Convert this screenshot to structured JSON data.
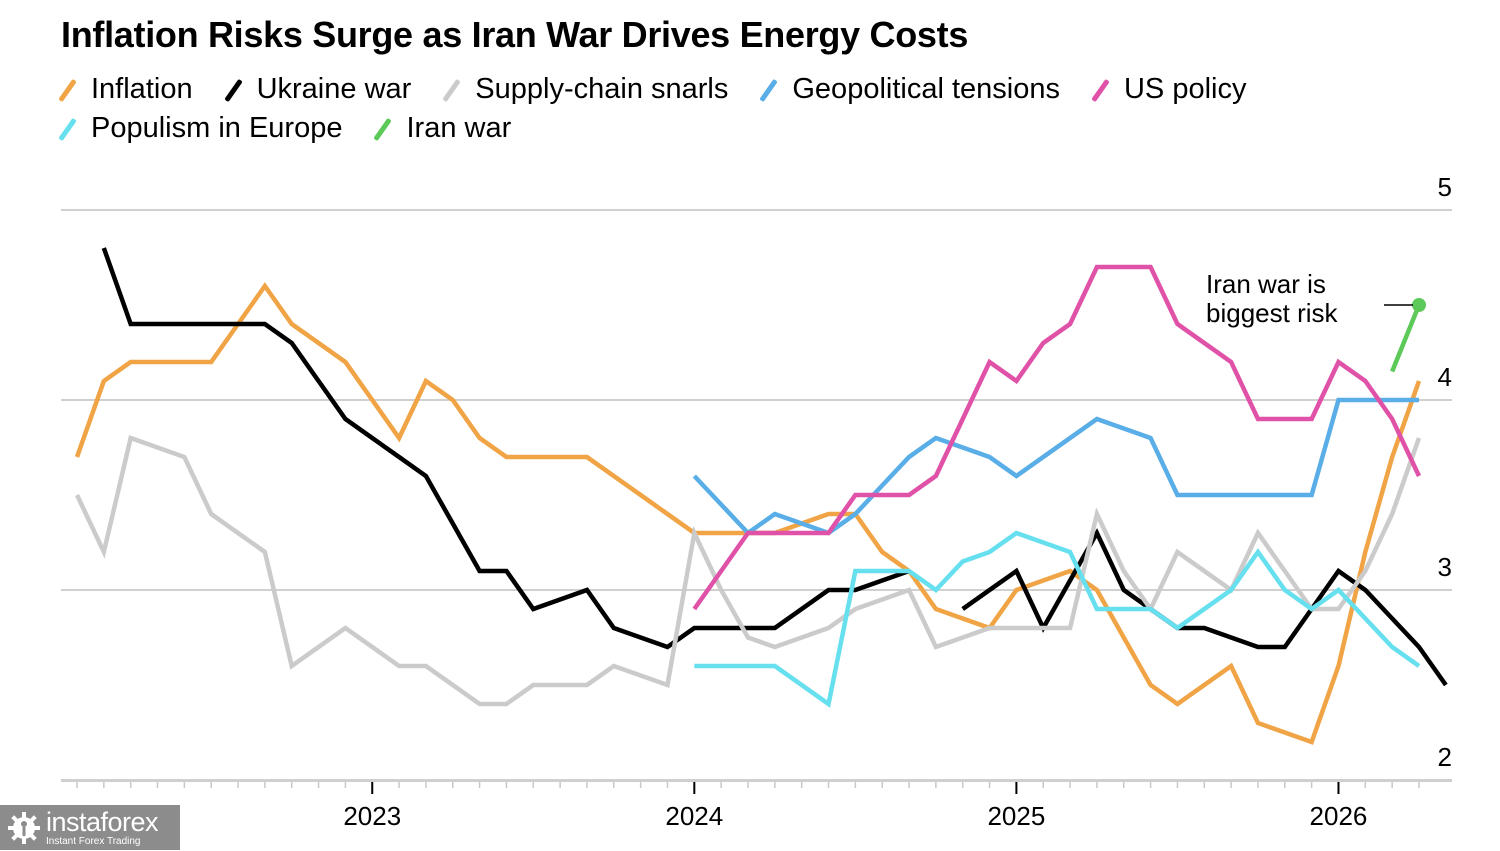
{
  "chart_data": {
    "type": "line",
    "title": "Inflation Risks Surge as Iran War Drives Energy Costs",
    "xlabel": "",
    "ylabel": "",
    "x_start": "2022-02",
    "x_end": "2026-04",
    "x_frequency": "monthly",
    "x_tick_labels": [
      {
        "label": "2023",
        "month_index": 11
      },
      {
        "label": "2024",
        "month_index": 23
      },
      {
        "label": "2025",
        "month_index": 35
      },
      {
        "label": "2026",
        "month_index": 47
      }
    ],
    "ylim": [
      1.85,
      5.15
    ],
    "y_ticks": [
      2,
      3,
      4,
      5
    ],
    "y_axis_side": "right",
    "grid": true,
    "legend_position": "top",
    "series": [
      {
        "name": "Inflation",
        "color": "#f0a445",
        "start_index": 0,
        "values": [
          3.7,
          4.1,
          4.2,
          4.2,
          4.2,
          4.2,
          4.4,
          4.6,
          4.4,
          4.3,
          4.2,
          4.0,
          3.8,
          4.1,
          4.0,
          3.8,
          3.7,
          3.7,
          3.7,
          3.7,
          3.6,
          3.5,
          3.4,
          3.3,
          3.3,
          3.3,
          3.3,
          3.35,
          3.4,
          3.4,
          3.2,
          3.1,
          2.9,
          2.85,
          2.8,
          3.0,
          3.05,
          3.1,
          3.0,
          2.75,
          2.5,
          2.4,
          2.5,
          2.6,
          2.3,
          2.25,
          2.2,
          2.6,
          3.2,
          3.7,
          4.1
        ]
      },
      {
        "name": "Ukraine war",
        "color": "#000000",
        "start_index": 1,
        "values": [
          4.8,
          4.4,
          4.4,
          4.4,
          4.4,
          4.4,
          4.4,
          4.3,
          4.1,
          3.9,
          3.8,
          3.7,
          3.6,
          3.35,
          3.1,
          3.1,
          2.9,
          2.95,
          3.0,
          2.8,
          2.75,
          2.7,
          2.8,
          2.8,
          2.8,
          2.8,
          2.9,
          3.0,
          3.0,
          3.05,
          3.1,
          null,
          2.9,
          3.0,
          3.1,
          2.8,
          3.05,
          3.3,
          3.0,
          2.9,
          2.8,
          2.8,
          2.75,
          2.7,
          2.7,
          2.9,
          3.1,
          3.0,
          2.85,
          2.7,
          2.5
        ]
      },
      {
        "name": "Supply-chain snarls",
        "color": "#cbcbcb",
        "start_index": 0,
        "values": [
          3.5,
          3.2,
          3.8,
          3.75,
          3.7,
          3.4,
          3.3,
          3.2,
          2.6,
          2.7,
          2.8,
          2.7,
          2.6,
          2.6,
          2.5,
          2.4,
          2.4,
          2.5,
          2.5,
          2.5,
          2.6,
          2.55,
          2.5,
          3.3,
          3.0,
          2.75,
          2.7,
          2.75,
          2.8,
          2.9,
          2.95,
          3.0,
          2.7,
          2.75,
          2.8,
          2.8,
          2.8,
          2.8,
          3.4,
          3.1,
          2.9,
          3.2,
          3.1,
          3.0,
          3.3,
          3.1,
          2.9,
          2.9,
          3.1,
          3.4,
          3.8
        ]
      },
      {
        "name": "Geopolitical tensions",
        "color": "#5aaee8",
        "start_index": 23,
        "values": [
          3.6,
          3.45,
          3.3,
          3.4,
          3.35,
          3.3,
          3.4,
          3.55,
          3.7,
          3.8,
          3.75,
          3.7,
          3.6,
          3.7,
          3.8,
          3.9,
          3.85,
          3.8,
          3.5,
          3.5,
          3.5,
          3.5,
          3.5,
          3.5,
          4.0,
          4.0,
          4.0,
          4.0
        ]
      },
      {
        "name": "US policy",
        "color": "#e052a8",
        "start_index": 23,
        "values": [
          2.9,
          3.1,
          3.3,
          3.3,
          3.3,
          3.3,
          3.5,
          3.5,
          3.5,
          3.6,
          3.9,
          4.2,
          4.1,
          4.3,
          4.4,
          4.7,
          4.7,
          4.7,
          4.4,
          4.3,
          4.2,
          3.9,
          3.9,
          3.9,
          4.2,
          4.1,
          3.9,
          3.6
        ]
      },
      {
        "name": "Populism in Europe",
        "color": "#66dfee",
        "start_index": 23,
        "values": [
          2.6,
          2.6,
          2.6,
          2.6,
          2.5,
          2.4,
          3.1,
          3.1,
          3.1,
          3.0,
          3.15,
          3.2,
          3.3,
          3.25,
          3.2,
          2.9,
          2.9,
          2.9,
          2.8,
          2.9,
          3.0,
          3.2,
          3.0,
          2.9,
          3.0,
          2.85,
          2.7,
          2.6
        ]
      },
      {
        "name": "Iran war",
        "color": "#5cc958",
        "start_index": 49,
        "values": [
          4.15,
          4.5
        ],
        "end_marker": true
      }
    ],
    "annotations": [
      {
        "text_lines": [
          "Iran war is",
          "biggest risk"
        ],
        "target_series": "Iran war",
        "target_index": 50
      }
    ]
  },
  "watermark": {
    "brand": "instaforex",
    "tagline": "Instant Forex Trading"
  }
}
